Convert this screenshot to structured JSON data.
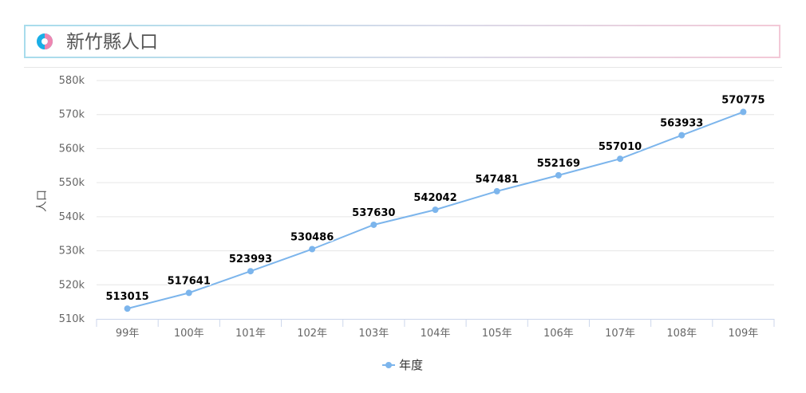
{
  "header": {
    "title": "新竹縣人口",
    "icon": "donut-chart-icon",
    "icon_colors": [
      "#1aaee6",
      "#ef86b0"
    ]
  },
  "chart_data": {
    "type": "line",
    "categories": [
      "99年",
      "100年",
      "101年",
      "102年",
      "103年",
      "104年",
      "105年",
      "106年",
      "107年",
      "108年",
      "109年"
    ],
    "series": [
      {
        "name": "年度",
        "values": [
          513015,
          517641,
          523993,
          530486,
          537630,
          542042,
          547481,
          552169,
          557010,
          563933,
          570775
        ],
        "color": "#7cb5ec"
      }
    ],
    "ylabel": "人口",
    "xlabel": "",
    "ylim": [
      510000,
      580000
    ],
    "yticks": [
      510000,
      520000,
      530000,
      540000,
      550000,
      560000,
      570000,
      580000
    ],
    "ytick_labels": [
      "510k",
      "520k",
      "530k",
      "540k",
      "550k",
      "560k",
      "570k",
      "580k"
    ],
    "grid": true,
    "legend": "bottom-center",
    "data_labels": true
  }
}
